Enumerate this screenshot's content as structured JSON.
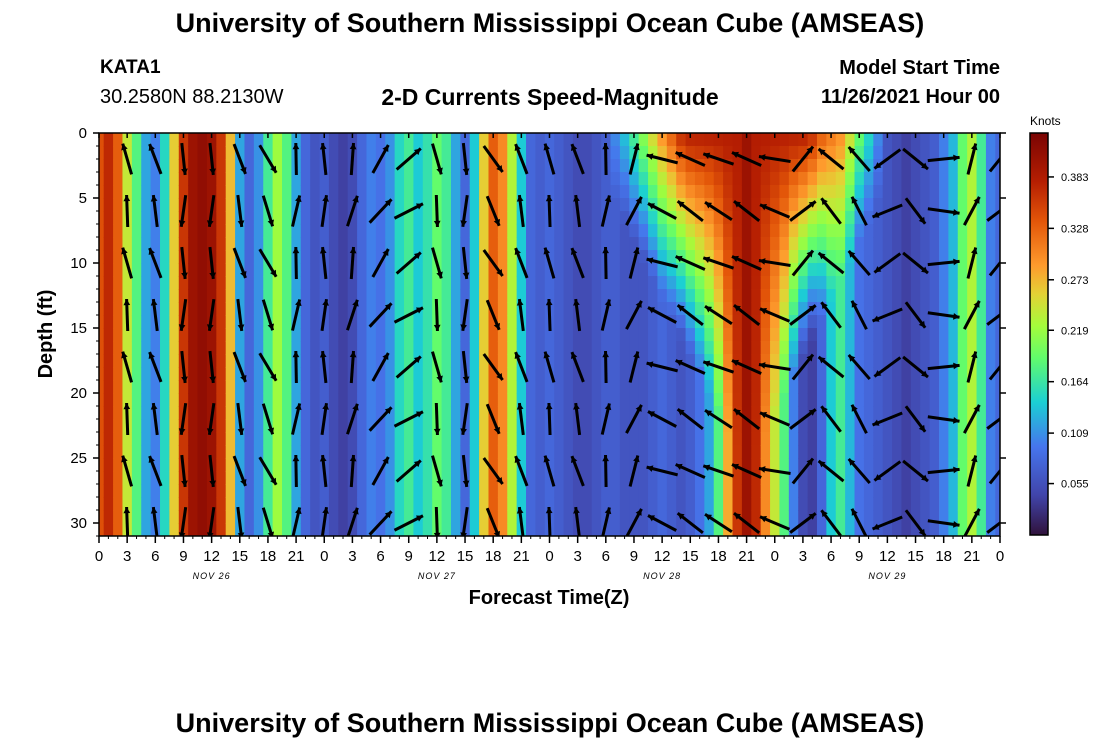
{
  "header": {
    "title": "University of Southern Mississippi Ocean Cube (AMSEAS)",
    "station": "KATA1",
    "coords": "30.2580N  88.2130W",
    "subtitle": "2-D Currents Speed-Magnitude",
    "model_start_label": "Model Start Time",
    "model_start_value": "11/26/2021 Hour 00"
  },
  "footer": {
    "title_repeat": "University of Southern Mississippi Ocean Cube (AMSEAS)"
  },
  "chart_data": {
    "type": "heatmap",
    "title": "2-D Currents Speed-Magnitude",
    "xlabel": "Forecast Time(Z)",
    "ylabel": "Depth (ft)",
    "x_tick_labels": [
      "0",
      "3",
      "6",
      "9",
      "12",
      "15",
      "18",
      "21",
      "0",
      "3",
      "6",
      "9",
      "12",
      "15",
      "18",
      "21",
      "0",
      "3",
      "6",
      "9",
      "12",
      "15",
      "18",
      "21",
      "0",
      "3",
      "6",
      "9",
      "12",
      "15",
      "18",
      "21",
      "0"
    ],
    "date_labels": [
      {
        "label": "NOV 26",
        "hour": 12
      },
      {
        "label": "NOV 27",
        "hour": 36
      },
      {
        "label": "NOV 28",
        "hour": 60
      },
      {
        "label": "NOV 29",
        "hour": 84
      }
    ],
    "xlim_hours": [
      0,
      96
    ],
    "ylim_depth_ft": [
      0,
      31
    ],
    "y_ticks": [
      0,
      5,
      10,
      15,
      20,
      25,
      30
    ],
    "colorbar": {
      "unit": "Knots",
      "ticks": [
        0.055,
        0.109,
        0.164,
        0.219,
        0.273,
        0.328,
        0.383
      ],
      "range": [
        0.0,
        0.43
      ]
    },
    "depth_levels_ft": [
      2,
      6,
      10,
      14,
      18,
      22,
      26,
      30
    ],
    "speed_profile_by_hour": [
      {
        "hour": 0,
        "speed": 0.34
      },
      {
        "hour": 1,
        "speed": 0.37
      },
      {
        "hour": 2,
        "speed": 0.33
      },
      {
        "hour": 3,
        "speed": 0.24
      },
      {
        "hour": 4,
        "speed": 0.18
      },
      {
        "hour": 5,
        "speed": 0.12
      },
      {
        "hour": 6,
        "speed": 0.1
      },
      {
        "hour": 7,
        "speed": 0.15
      },
      {
        "hour": 8,
        "speed": 0.26
      },
      {
        "hour": 9,
        "speed": 0.36
      },
      {
        "hour": 10,
        "speed": 0.4
      },
      {
        "hour": 11,
        "speed": 0.41
      },
      {
        "hour": 12,
        "speed": 0.4
      },
      {
        "hour": 13,
        "speed": 0.36
      },
      {
        "hour": 14,
        "speed": 0.27
      },
      {
        "hour": 15,
        "speed": 0.12
      },
      {
        "hour": 16,
        "speed": 0.08
      },
      {
        "hour": 17,
        "speed": 0.11
      },
      {
        "hour": 18,
        "speed": 0.17
      },
      {
        "hour": 19,
        "speed": 0.22
      },
      {
        "hour": 20,
        "speed": 0.18
      },
      {
        "hour": 21,
        "speed": 0.12
      },
      {
        "hour": 22,
        "speed": 0.08
      },
      {
        "hour": 23,
        "speed": 0.06
      },
      {
        "hour": 24,
        "speed": 0.07
      },
      {
        "hour": 25,
        "speed": 0.05
      },
      {
        "hour": 26,
        "speed": 0.04
      },
      {
        "hour": 27,
        "speed": 0.05
      },
      {
        "hour": 28,
        "speed": 0.08
      },
      {
        "hour": 29,
        "speed": 0.1
      },
      {
        "hour": 30,
        "speed": 0.09
      },
      {
        "hour": 31,
        "speed": 0.11
      },
      {
        "hour": 32,
        "speed": 0.15
      },
      {
        "hour": 33,
        "speed": 0.17
      },
      {
        "hour": 34,
        "speed": 0.14
      },
      {
        "hour": 35,
        "speed": 0.16
      },
      {
        "hour": 36,
        "speed": 0.19
      },
      {
        "hour": 37,
        "speed": 0.17
      },
      {
        "hour": 38,
        "speed": 0.12
      },
      {
        "hour": 39,
        "speed": 0.08
      },
      {
        "hour": 40,
        "speed": 0.14
      },
      {
        "hour": 41,
        "speed": 0.26
      },
      {
        "hour": 42,
        "speed": 0.33
      },
      {
        "hour": 43,
        "speed": 0.3
      },
      {
        "hour": 44,
        "speed": 0.23
      },
      {
        "hour": 45,
        "speed": 0.14
      },
      {
        "hour": 46,
        "speed": 0.08
      },
      {
        "hour": 47,
        "speed": 0.07
      },
      {
        "hour": 48,
        "speed": 0.08
      },
      {
        "hour": 49,
        "speed": 0.07
      },
      {
        "hour": 50,
        "speed": 0.06
      },
      {
        "hour": 51,
        "speed": 0.05
      },
      {
        "hour": 52,
        "speed": 0.05
      },
      {
        "hour": 53,
        "speed": 0.06
      },
      {
        "hour": 54,
        "speed": 0.07
      },
      {
        "hour": 55,
        "speed": 0.07
      },
      {
        "hour": 56,
        "speed": 0.06
      },
      {
        "hour": 57,
        "speed": 0.06
      },
      {
        "hour": 58,
        "speed": 0.06
      },
      {
        "hour": 59,
        "speed": 0.07
      },
      {
        "hour": 60,
        "speed": 0.08
      },
      {
        "hour": 61,
        "speed": 0.07
      },
      {
        "hour": 62,
        "speed": 0.06
      },
      {
        "hour": 63,
        "speed": 0.07
      },
      {
        "hour": 64,
        "speed": 0.09
      },
      {
        "hour": 65,
        "speed": 0.12
      },
      {
        "hour": 66,
        "speed": 0.18
      },
      {
        "hour": 67,
        "speed": 0.28
      },
      {
        "hour": 68,
        "speed": 0.36
      },
      {
        "hour": 69,
        "speed": 0.4
      },
      {
        "hour": 70,
        "speed": 0.37
      },
      {
        "hour": 71,
        "speed": 0.3
      },
      {
        "hour": 72,
        "speed": 0.24
      },
      {
        "hour": 73,
        "speed": 0.18
      },
      {
        "hour": 74,
        "speed": 0.1
      },
      {
        "hour": 75,
        "speed": 0.05
      },
      {
        "hour": 76,
        "speed": 0.04
      },
      {
        "hour": 77,
        "speed": 0.08
      },
      {
        "hour": 78,
        "speed": 0.14
      },
      {
        "hour": 79,
        "speed": 0.17
      },
      {
        "hour": 80,
        "speed": 0.13
      },
      {
        "hour": 81,
        "speed": 0.09
      },
      {
        "hour": 82,
        "speed": 0.08
      },
      {
        "hour": 83,
        "speed": 0.07
      },
      {
        "hour": 84,
        "speed": 0.06
      },
      {
        "hour": 85,
        "speed": 0.05
      },
      {
        "hour": 86,
        "speed": 0.04
      },
      {
        "hour": 87,
        "speed": 0.05
      },
      {
        "hour": 88,
        "speed": 0.06
      },
      {
        "hour": 89,
        "speed": 0.07
      },
      {
        "hour": 90,
        "speed": 0.1
      },
      {
        "hour": 91,
        "speed": 0.13
      },
      {
        "hour": 92,
        "speed": 0.19
      },
      {
        "hour": 93,
        "speed": 0.23
      },
      {
        "hour": 94,
        "speed": 0.17
      },
      {
        "hour": 95,
        "speed": 0.1
      },
      {
        "hour": 96,
        "speed": 0.08
      }
    ],
    "surface_feature": {
      "description_hours": [
        54,
        84
      ],
      "surface_speed": 0.38
    },
    "current_direction_by_hour": [
      {
        "hour": 3,
        "dir_deg": 350
      },
      {
        "hour": 6,
        "dir_deg": 345
      },
      {
        "hour": 9,
        "dir_deg": 180
      },
      {
        "hour": 12,
        "dir_deg": 180
      },
      {
        "hour": 15,
        "dir_deg": 165
      },
      {
        "hour": 18,
        "dir_deg": 155
      },
      {
        "hour": 21,
        "dir_deg": 5
      },
      {
        "hour": 24,
        "dir_deg": 0
      },
      {
        "hour": 27,
        "dir_deg": 10
      },
      {
        "hour": 30,
        "dir_deg": 35
      },
      {
        "hour": 33,
        "dir_deg": 55
      },
      {
        "hour": 36,
        "dir_deg": 170
      },
      {
        "hour": 39,
        "dir_deg": 180
      },
      {
        "hour": 42,
        "dir_deg": 150
      },
      {
        "hour": 45,
        "dir_deg": 345
      },
      {
        "hour": 48,
        "dir_deg": 350
      },
      {
        "hour": 51,
        "dir_deg": 345
      },
      {
        "hour": 54,
        "dir_deg": 5
      },
      {
        "hour": 57,
        "dir_deg": 20
      },
      {
        "hour": 60,
        "dir_deg": 290
      },
      {
        "hour": 63,
        "dir_deg": 300
      },
      {
        "hour": 66,
        "dir_deg": 295
      },
      {
        "hour": 69,
        "dir_deg": 300
      },
      {
        "hour": 72,
        "dir_deg": 285
      },
      {
        "hour": 75,
        "dir_deg": 45
      },
      {
        "hour": 78,
        "dir_deg": 315
      },
      {
        "hour": 81,
        "dir_deg": 325
      },
      {
        "hour": 84,
        "dir_deg": 240
      },
      {
        "hour": 87,
        "dir_deg": 135
      },
      {
        "hour": 90,
        "dir_deg": 90
      },
      {
        "hour": 93,
        "dir_deg": 20
      },
      {
        "hour": 96,
        "dir_deg": 45
      }
    ]
  }
}
